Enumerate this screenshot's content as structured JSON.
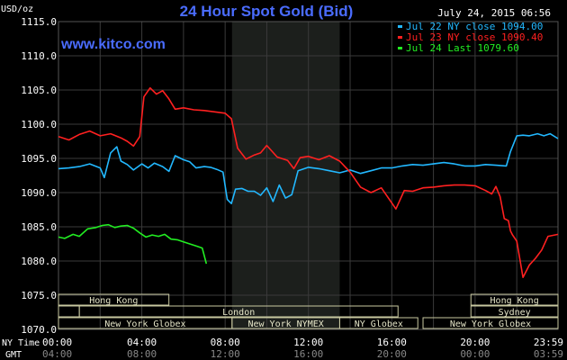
{
  "chart_data": {
    "type": "line",
    "title": "24 Hour Spot Gold (Bid)",
    "unit_label": "USD/oz",
    "timestamp": "July 24, 2015 06:56",
    "watermark": "www.kitco.com",
    "ylim": [
      1070,
      1115
    ],
    "yticks": [
      "1115.0",
      "1110.0",
      "1105.0",
      "1100.0",
      "1095.0",
      "1090.0",
      "1085.0",
      "1080.0",
      "1075.0",
      "1070.0"
    ],
    "xlim_hours": [
      0,
      23.98
    ],
    "xticks_ny": [
      "00:00",
      "04:00",
      "08:00",
      "12:00",
      "16:00",
      "20:00",
      "23:59"
    ],
    "xticks_gmt": [
      "04:00",
      "08:00",
      "12:00",
      "16:00",
      "20:00",
      "00:00",
      "03:59"
    ],
    "xrow_labels": {
      "ny": "NY Time",
      "gmt": "GMT"
    },
    "nymex_shade_hours": [
      8.33,
      13.5
    ],
    "series": [
      {
        "name": "Jul 22 NY close 1094.00",
        "color": "#22b8ff",
        "x": [
          0,
          0.5,
          1,
          1.5,
          2,
          2.2,
          2.5,
          2.8,
          3,
          3.3,
          3.6,
          4,
          4.3,
          4.6,
          5,
          5.3,
          5.6,
          6,
          6.3,
          6.6,
          7,
          7.3,
          7.6,
          7.9,
          8.1,
          8.3,
          8.5,
          8.8,
          9.1,
          9.4,
          9.7,
          10,
          10.3,
          10.6,
          10.9,
          11.2,
          11.5,
          12,
          12.5,
          13,
          13.5,
          14,
          14.5,
          15,
          15.5,
          16,
          16.5,
          17,
          17.5,
          18,
          18.5,
          19,
          19.5,
          20,
          20.5,
          21,
          21.5,
          21.7,
          22,
          22.3,
          22.6,
          23,
          23.3,
          23.6,
          23.98
        ],
        "y": [
          1093.5,
          1093.6,
          1093.8,
          1094.2,
          1093.6,
          1092.2,
          1095.8,
          1096.7,
          1094.6,
          1094.1,
          1093.3,
          1094.2,
          1093.6,
          1094.3,
          1093.8,
          1093.1,
          1095.4,
          1094.8,
          1094.5,
          1093.6,
          1093.8,
          1093.7,
          1093.4,
          1093.0,
          1089.0,
          1088.4,
          1090.5,
          1090.6,
          1090.2,
          1090.2,
          1089.6,
          1090.7,
          1088.7,
          1091.1,
          1089.2,
          1089.7,
          1093.2,
          1093.7,
          1093.5,
          1093.2,
          1092.9,
          1093.3,
          1092.8,
          1093.2,
          1093.6,
          1093.6,
          1093.9,
          1094.1,
          1094.0,
          1094.2,
          1094.4,
          1094.2,
          1093.9,
          1093.9,
          1094.1,
          1094.0,
          1093.9,
          1096.0,
          1098.3,
          1098.4,
          1098.3,
          1098.6,
          1098.3,
          1098.6,
          1097.9
        ]
      },
      {
        "name": "Jul 23 NY close 1090.40",
        "color": "#ff2020",
        "x": [
          0,
          0.5,
          1,
          1.5,
          2,
          2.5,
          3,
          3.3,
          3.6,
          3.9,
          4.1,
          4.4,
          4.7,
          5,
          5.3,
          5.6,
          6,
          6.5,
          7,
          7.5,
          8,
          8.3,
          8.6,
          9,
          9.4,
          9.7,
          10,
          10.5,
          11,
          11.3,
          11.6,
          12,
          12.5,
          13,
          13.5,
          14,
          14.5,
          15,
          15.5,
          16,
          16.2,
          16.6,
          17,
          17.5,
          18,
          18.5,
          19,
          19.5,
          20,
          20.5,
          20.8,
          21,
          21.2,
          21.4,
          21.6,
          21.7,
          21.8,
          22,
          22.3,
          22.6,
          22.9,
          23.2,
          23.5,
          23.98
        ],
        "y": [
          1098.2,
          1097.7,
          1098.5,
          1099.0,
          1098.3,
          1098.6,
          1098.0,
          1097.5,
          1096.8,
          1098.2,
          1104.0,
          1105.3,
          1104.4,
          1104.9,
          1103.7,
          1102.2,
          1102.4,
          1102.1,
          1102.0,
          1101.8,
          1101.6,
          1100.8,
          1096.5,
          1094.9,
          1095.5,
          1095.8,
          1096.9,
          1095.2,
          1094.7,
          1093.5,
          1095.1,
          1095.3,
          1094.8,
          1095.4,
          1094.6,
          1093.0,
          1090.8,
          1090.0,
          1090.7,
          1088.5,
          1087.6,
          1090.3,
          1090.2,
          1090.7,
          1090.8,
          1091.0,
          1091.1,
          1091.1,
          1091.0,
          1090.3,
          1089.8,
          1090.9,
          1089.4,
          1086.2,
          1085.9,
          1084.4,
          1083.8,
          1082.9,
          1077.6,
          1079.4,
          1080.4,
          1081.6,
          1083.6,
          1083.9
        ]
      },
      {
        "name": "Jul 24 Last 1079.60",
        "color": "#22ee22",
        "x": [
          0,
          0.3,
          0.7,
          1,
          1.4,
          1.8,
          2.1,
          2.4,
          2.7,
          3,
          3.3,
          3.6,
          3.9,
          4.2,
          4.5,
          4.8,
          5.1,
          5.4,
          5.7,
          6,
          6.3,
          6.6,
          6.9,
          7.1
        ],
        "y": [
          1083.5,
          1083.3,
          1083.9,
          1083.6,
          1084.7,
          1084.9,
          1085.2,
          1085.3,
          1084.9,
          1085.1,
          1085.2,
          1084.8,
          1084.1,
          1083.5,
          1083.8,
          1083.6,
          1083.9,
          1083.2,
          1083.1,
          1082.8,
          1082.5,
          1082.2,
          1081.9,
          1079.6
        ]
      }
    ],
    "sessions": [
      {
        "label": "Hong Kong",
        "start": 0,
        "end": 5.3,
        "row": 0
      },
      {
        "label": "Hong Kong",
        "start": 19.8,
        "end": 23.98,
        "row": 0
      },
      {
        "label": "",
        "start": 0,
        "end": 1.0,
        "row": 1
      },
      {
        "label": "London",
        "start": 1.0,
        "end": 16.3,
        "row": 1
      },
      {
        "label": "Sydney",
        "start": 19.8,
        "end": 23.98,
        "row": 1
      },
      {
        "label": "New York Globex",
        "start": 0,
        "end": 8.33,
        "row": 2
      },
      {
        "label": "New York NYMEX",
        "start": 8.33,
        "end": 13.5,
        "row": 2
      },
      {
        "label": "NY Globex",
        "start": 13.5,
        "end": 17.25,
        "row": 2
      },
      {
        "label": "New York Globex",
        "start": 17.5,
        "end": 23.98,
        "row": 2
      }
    ]
  }
}
